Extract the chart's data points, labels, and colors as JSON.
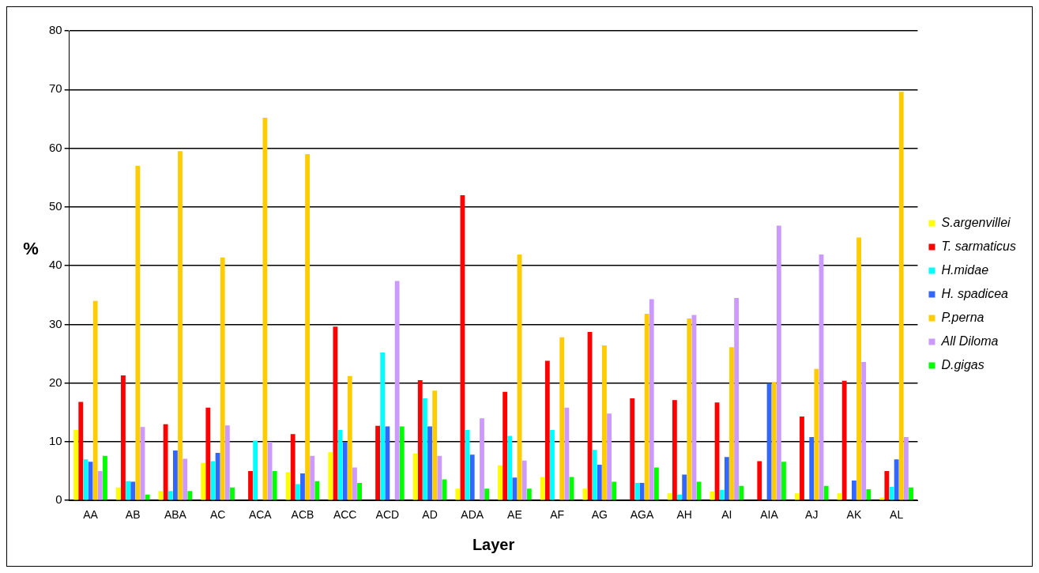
{
  "chart_data": {
    "type": "bar",
    "xlabel": "Layer",
    "ylabel": "%",
    "categories": [
      "AA",
      "AB",
      "ABA",
      "AC",
      "ACA",
      "ACB",
      "ACC",
      "ACD",
      "AD",
      "ADA",
      "AE",
      "AF",
      "AG",
      "AGA",
      "AH",
      "AI",
      "AIA",
      "AJ",
      "AK",
      "AL"
    ],
    "series": [
      {
        "name": "S.argenvillei",
        "color": "#ffff00",
        "values": [
          12,
          2.2,
          1.6,
          6.4,
          0,
          4.8,
          8.2,
          0,
          8,
          2,
          6,
          4,
          2,
          0,
          1.2,
          1.5,
          0,
          1.2,
          1.2,
          0.5
        ]
      },
      {
        "name": "T. sarmaticus",
        "color": "#ff0000",
        "values": [
          16.8,
          21.3,
          13,
          15.8,
          5,
          11.3,
          29.6,
          12.7,
          20.5,
          52,
          18.5,
          23.8,
          28.7,
          17.4,
          17.1,
          16.7,
          6.7,
          14.3,
          20.4,
          5
        ]
      },
      {
        "name": "H.midae",
        "color": "#00ffff",
        "values": [
          7,
          3.3,
          1.6,
          6.7,
          10.2,
          2.8,
          12,
          25.2,
          17.4,
          12,
          11,
          12,
          8.6,
          3,
          1,
          1.8,
          0,
          0,
          0,
          2.3
        ]
      },
      {
        "name": "H. spadicea",
        "color": "#3366ff",
        "values": [
          6.6,
          3.2,
          8.5,
          8.1,
          0,
          4.6,
          10,
          12.6,
          12.6,
          7.8,
          3.9,
          0,
          6.1,
          3,
          4.4,
          7.4,
          20,
          10.8,
          3.4,
          7
        ]
      },
      {
        "name": "P.perna",
        "color": "#ffcc00",
        "values": [
          34,
          57,
          59.5,
          41.4,
          65.2,
          59,
          21.2,
          0,
          18.7,
          0,
          41.9,
          27.8,
          26.4,
          31.8,
          31,
          26.1,
          20.2,
          22.4,
          44.8,
          69.6
        ]
      },
      {
        "name": "All Diloma",
        "color": "#cc99ff",
        "values": [
          5,
          12.5,
          7.1,
          12.8,
          10,
          7.6,
          5.6,
          37.4,
          7.6,
          14,
          6.8,
          15.8,
          14.8,
          34.3,
          31.6,
          34.5,
          46.8,
          41.9,
          23.6,
          10.8
        ]
      },
      {
        "name": "D.gigas",
        "color": "#00ff00",
        "values": [
          7.6,
          1,
          1.6,
          2.2,
          5,
          3.3,
          3,
          12.6,
          3.6,
          2,
          2,
          4,
          3.2,
          5.6,
          3.2,
          2.5,
          6.6,
          2.5,
          1.9,
          2.2
        ]
      }
    ],
    "ylim": [
      0,
      80
    ],
    "yticks": [
      0,
      10,
      20,
      30,
      40,
      50,
      60,
      70,
      80
    ],
    "grid": "y",
    "legend": "right"
  }
}
